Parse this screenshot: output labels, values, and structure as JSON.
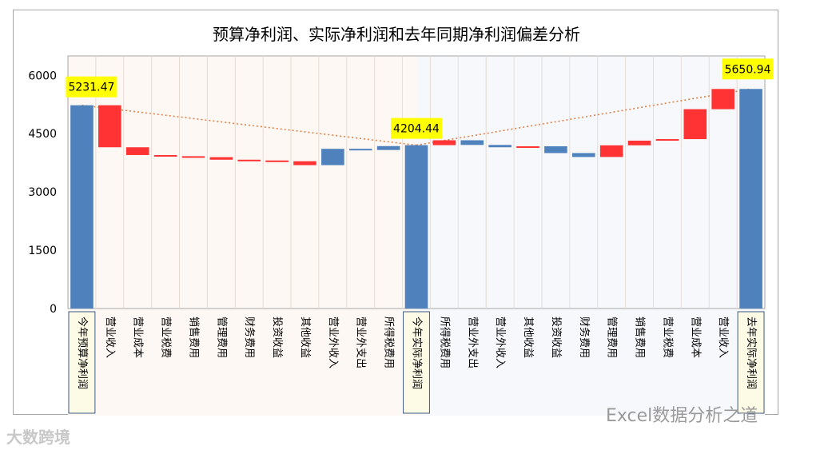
{
  "chart_data": {
    "type": "waterfall",
    "title": "预算净利润、实际净利润和去年同期净利润偏差分析",
    "ylim": [
      0,
      6500
    ],
    "yticks": [
      0,
      1500,
      3000,
      4500,
      6000
    ],
    "grid": "vertical",
    "legend": "none",
    "categories": [
      "今年预算净利润",
      "营业收入",
      "营业成本",
      "营业税费",
      "销售费用",
      "管理费用",
      "财务费用",
      "投资收益",
      "其他收益",
      "营业外收入",
      "营业外支出",
      "所得税费用",
      "今年实际净利润",
      "所得税费用",
      "营业外支出",
      "营业外收入",
      "其他收益",
      "投资收益",
      "财务费用",
      "管理费用",
      "销售费用",
      "营业税费",
      "营业成本",
      "营业收入",
      "去年实际净利润"
    ],
    "bars": [
      {
        "kind": "total",
        "start": 0,
        "end": 5231.47
      },
      {
        "kind": "down",
        "start": 5231.47,
        "end": 4150
      },
      {
        "kind": "down",
        "start": 4150,
        "end": 3950
      },
      {
        "kind": "down",
        "start": 3950,
        "end": 3920
      },
      {
        "kind": "down",
        "start": 3920,
        "end": 3895
      },
      {
        "kind": "down",
        "start": 3895,
        "end": 3830
      },
      {
        "kind": "down",
        "start": 3830,
        "end": 3810
      },
      {
        "kind": "down",
        "start": 3810,
        "end": 3790
      },
      {
        "kind": "down",
        "start": 3790,
        "end": 3690
      },
      {
        "kind": "up",
        "start": 3690,
        "end": 4110
      },
      {
        "kind": "up",
        "start": 4110,
        "end": 4080
      },
      {
        "kind": "up",
        "start": 4080,
        "end": 4180
      },
      {
        "kind": "total",
        "start": 0,
        "end": 4204.44
      },
      {
        "kind": "down",
        "start": 4204.44,
        "end": 4330
      },
      {
        "kind": "up",
        "start": 4330,
        "end": 4210
      },
      {
        "kind": "up",
        "start": 4210,
        "end": 4150
      },
      {
        "kind": "down",
        "start": 4150,
        "end": 4175
      },
      {
        "kind": "up",
        "start": 4175,
        "end": 4000
      },
      {
        "kind": "up",
        "start": 4000,
        "end": 3900
      },
      {
        "kind": "down",
        "start": 3900,
        "end": 4200
      },
      {
        "kind": "down",
        "start": 4200,
        "end": 4320
      },
      {
        "kind": "down",
        "start": 4320,
        "end": 4360
      },
      {
        "kind": "down",
        "start": 4360,
        "end": 5130
      },
      {
        "kind": "down",
        "start": 5130,
        "end": 5650
      },
      {
        "kind": "total",
        "start": 0,
        "end": 5650.94
      }
    ],
    "total_labels": [
      {
        "index": 0,
        "text": "5231.47"
      },
      {
        "index": 12,
        "text": "4204.44"
      },
      {
        "index": 24,
        "text": "5650.94"
      }
    ],
    "colors": {
      "up": "#4f81bd",
      "down": "#ff3333",
      "total": "#4f81bd",
      "left_bg": "#fdf8f4",
      "right_bg": "#f6f8fb",
      "highlight_label": "#fdfbe6",
      "callout": "#ffff00",
      "trend": "#e0824a"
    }
  },
  "watermarks": {
    "right": "Excel数据分析之道",
    "left": "大数跨境"
  }
}
